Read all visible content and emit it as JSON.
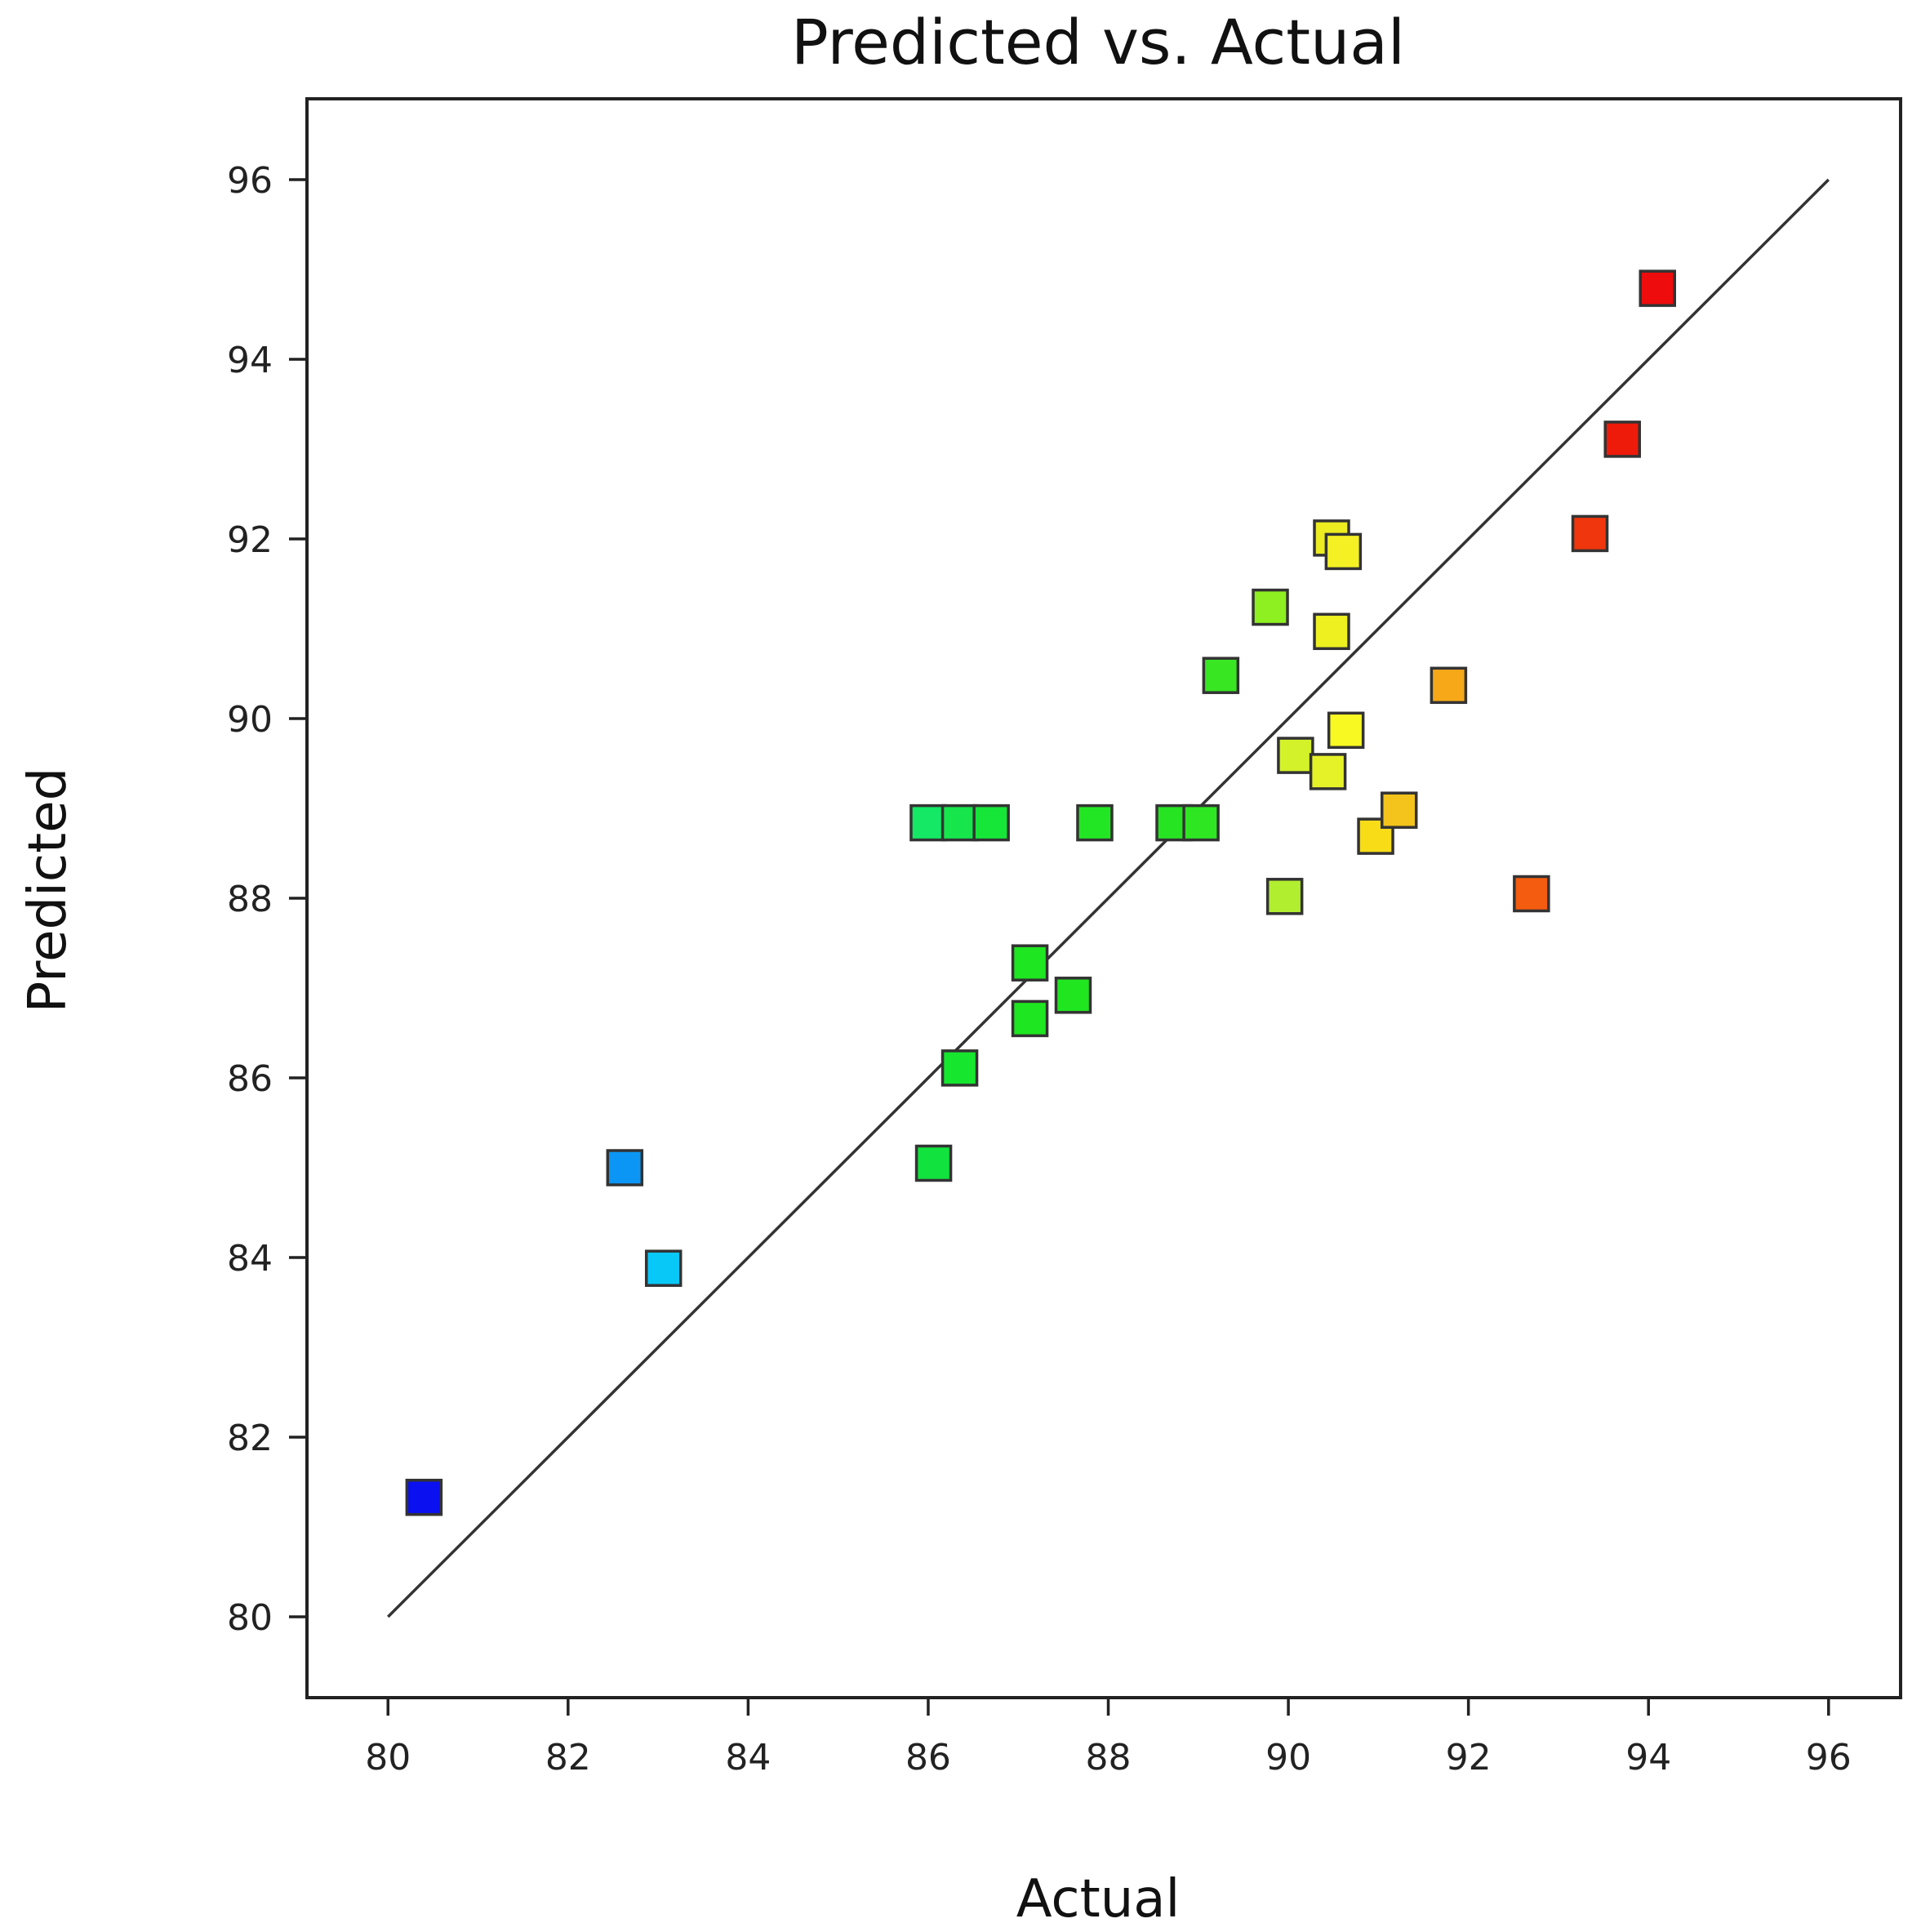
{
  "chart_data": {
    "type": "scatter",
    "title": "Predicted vs. Actual",
    "xlabel": "Actual",
    "ylabel": "Predicted",
    "xlim": [
      79.1,
      96.8
    ],
    "ylim": [
      79.1,
      96.9
    ],
    "xticks": [
      "80",
      "82",
      "84",
      "86",
      "88",
      "90",
      "92",
      "94",
      "96"
    ],
    "yticks": [
      "80",
      "82",
      "84",
      "86",
      "88",
      "90",
      "92",
      "94",
      "96"
    ],
    "grid": false,
    "marker": "square",
    "reference_line": {
      "from": [
        80,
        80
      ],
      "to": [
        96,
        96
      ]
    },
    "points": [
      {
        "x": 80.4,
        "y": 81.33,
        "color": "#0a10f0"
      },
      {
        "x": 82.63,
        "y": 85.0,
        "color": "#0b96f5"
      },
      {
        "x": 83.06,
        "y": 83.88,
        "color": "#08c8f8"
      },
      {
        "x": 86.06,
        "y": 85.05,
        "color": "#12e23e"
      },
      {
        "x": 86.35,
        "y": 86.11,
        "color": "#16e62e"
      },
      {
        "x": 87.13,
        "y": 87.28,
        "color": "#1ee620"
      },
      {
        "x": 87.13,
        "y": 86.66,
        "color": "#1ee620"
      },
      {
        "x": 87.61,
        "y": 86.92,
        "color": "#20e620"
      },
      {
        "x": 86.0,
        "y": 88.84,
        "color": "#14e864"
      },
      {
        "x": 86.35,
        "y": 88.84,
        "color": "#16e64c"
      },
      {
        "x": 86.7,
        "y": 88.84,
        "color": "#16e638"
      },
      {
        "x": 87.85,
        "y": 88.84,
        "color": "#22e624"
      },
      {
        "x": 88.73,
        "y": 88.84,
        "color": "#26e422"
      },
      {
        "x": 89.03,
        "y": 88.84,
        "color": "#2ee622"
      },
      {
        "x": 89.25,
        "y": 90.48,
        "color": "#38e622"
      },
      {
        "x": 89.8,
        "y": 91.24,
        "color": "#8ef020"
      },
      {
        "x": 89.96,
        "y": 88.02,
        "color": "#b2ee30"
      },
      {
        "x": 90.08,
        "y": 89.59,
        "color": "#d4f22a"
      },
      {
        "x": 90.44,
        "y": 89.41,
        "color": "#e6f228"
      },
      {
        "x": 90.48,
        "y": 90.97,
        "color": "#eef020"
      },
      {
        "x": 90.48,
        "y": 92.01,
        "color": "#ecec20"
      },
      {
        "x": 90.61,
        "y": 91.86,
        "color": "#f4f024"
      },
      {
        "x": 90.64,
        "y": 89.87,
        "color": "#f8f822"
      },
      {
        "x": 90.97,
        "y": 88.69,
        "color": "#f8dc18"
      },
      {
        "x": 91.23,
        "y": 88.98,
        "color": "#f4c41c"
      },
      {
        "x": 91.78,
        "y": 90.37,
        "color": "#f6a818"
      },
      {
        "x": 92.7,
        "y": 88.05,
        "color": "#f45c10"
      },
      {
        "x": 93.35,
        "y": 92.06,
        "color": "#f0360c"
      },
      {
        "x": 93.71,
        "y": 93.11,
        "color": "#ee1a0a"
      },
      {
        "x": 94.1,
        "y": 94.79,
        "color": "#ee0c0c"
      }
    ]
  }
}
